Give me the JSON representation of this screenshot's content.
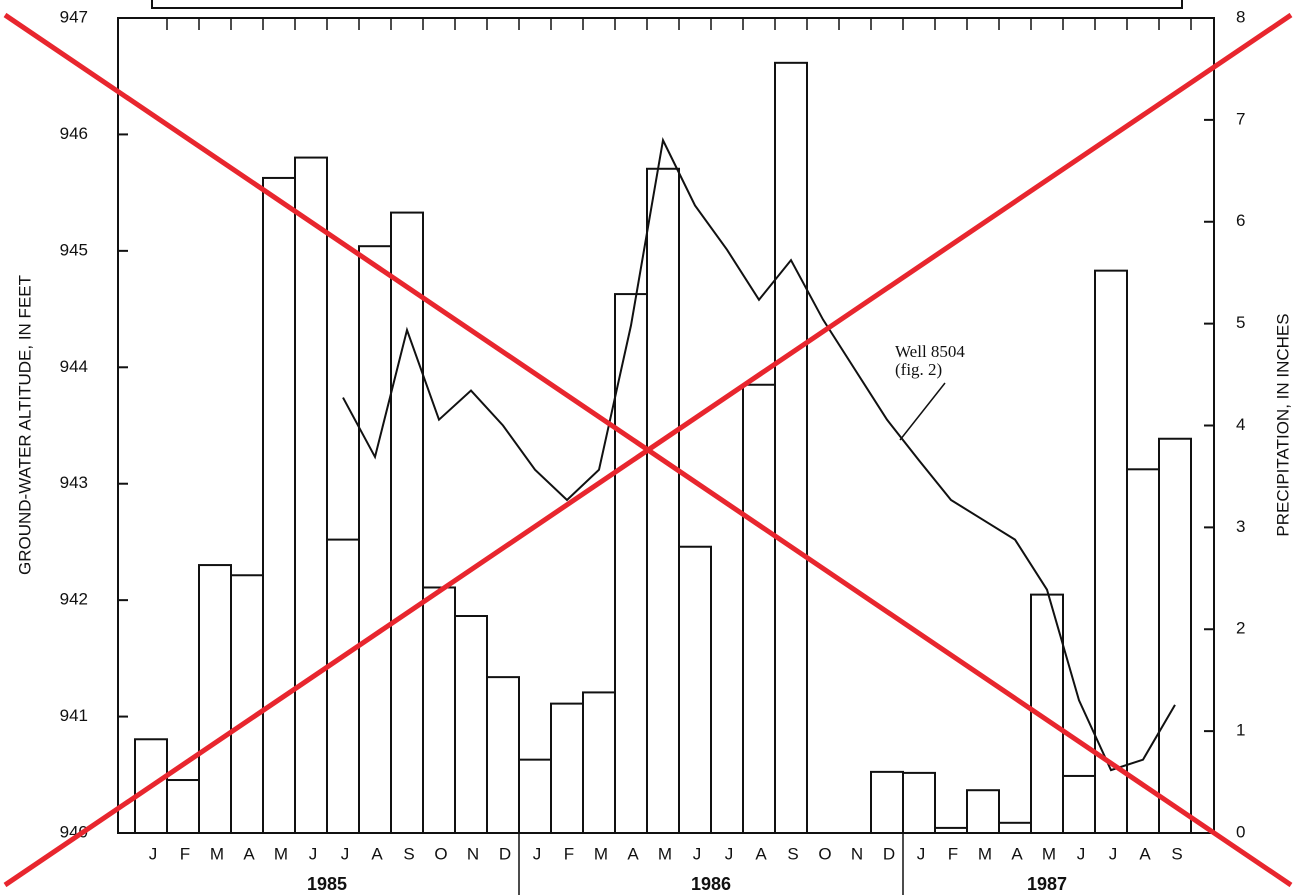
{
  "chart_data": {
    "type": "bar",
    "groups": [
      {
        "name": "1985",
        "categories": [
          "J",
          "F",
          "M",
          "A",
          "M",
          "J",
          "J",
          "A",
          "S",
          "O",
          "N",
          "D"
        ]
      },
      {
        "name": "1986",
        "categories": [
          "J",
          "F",
          "M",
          "A",
          "M",
          "J",
          "J",
          "A",
          "S",
          "O",
          "N",
          "D"
        ]
      },
      {
        "name": "1987",
        "categories": [
          "J",
          "F",
          "M",
          "A",
          "M",
          "J",
          "J",
          "A",
          "S"
        ]
      }
    ],
    "ylabel": "GROUND-WATER ALTITUDE, IN FEET",
    "y2label": "PRECIPITATION, IN INCHES",
    "ylim": [
      940,
      947
    ],
    "yticks": [
      940,
      941,
      942,
      943,
      944,
      945,
      946,
      947
    ],
    "y2lim": [
      0,
      8
    ],
    "y2ticks": [
      0,
      1,
      2,
      3,
      4,
      5,
      6,
      7,
      8
    ],
    "annotation": "Well 8504\n(fig. 2)",
    "series": [
      {
        "name": "Precipitation",
        "type": "bar",
        "axis": "y2",
        "color": "#ffffff",
        "values": [
          0.92,
          0.52,
          2.63,
          2.53,
          6.43,
          6.63,
          2.88,
          5.76,
          6.09,
          2.41,
          2.13,
          1.53,
          0.72,
          1.27,
          1.38,
          5.29,
          6.52,
          2.81,
          0,
          4.4,
          7.56,
          0,
          0,
          0.6,
          0.59,
          0.05,
          0.42,
          0.1,
          2.34,
          0.56,
          5.52,
          3.57,
          3.87
        ]
      },
      {
        "name": "Well 8504",
        "type": "line",
        "axis": "y",
        "color": "#111111",
        "values": [
          null,
          null,
          null,
          null,
          null,
          null,
          943.74,
          943.23,
          944.32,
          943.55,
          943.8,
          943.5,
          943.12,
          942.86,
          943.12,
          944.36,
          945.95,
          945.39,
          945.01,
          944.58,
          944.92,
          944.41,
          943.98,
          943.55,
          943.2,
          942.86,
          942.69,
          942.52,
          942.09,
          941.14,
          940.54,
          940.63,
          941.1
        ]
      }
    ]
  }
}
